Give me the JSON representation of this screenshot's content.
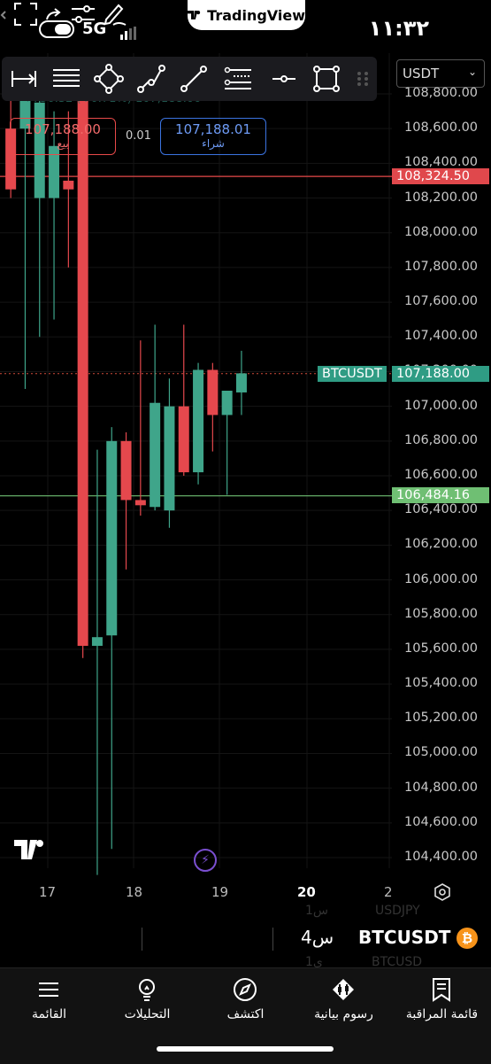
{
  "status_bar": {
    "network": "5G",
    "time": "١١:٣٢"
  },
  "badge": {
    "text": "TradingView"
  },
  "header": {
    "currency": "USDT"
  },
  "legend_hidden": "+756.32 (+0.71%) 107,188.00",
  "trade": {
    "sell_price": "107,188.00",
    "sell_label": "بيع",
    "spread": "0.01",
    "buy_price": "107,188.01",
    "buy_label": "شراء"
  },
  "price_tags": {
    "red_line": "108,324.50",
    "symbol_tag": "BTCUSDT",
    "last_price": "107,188.00",
    "green_line": "106,484.16"
  },
  "colors": {
    "up": "#3fa58a",
    "down": "#e5484d",
    "red_line": "#e84a4a",
    "green_line": "#6fbf73",
    "last_price_tag": "#2f9c84"
  },
  "chart_data": {
    "type": "candlestick",
    "symbol": "BTCUSDT",
    "y_ticks": [
      "108,800.00",
      "108,600.00",
      "108,400.00",
      "108,200.00",
      "108,000.00",
      "107,800.00",
      "107,600.00",
      "107,400.00",
      "107,200.00",
      "107,000.00",
      "106,800.00",
      "106,600.00",
      "106,400.00",
      "106,200.00",
      "106,000.00",
      "105,800.00",
      "105,600.00",
      "105,400.00",
      "105,200.00",
      "105,000.00",
      "104,800.00",
      "104,600.00",
      "104,400.00"
    ],
    "y_tick_values": [
      108800,
      108600,
      108400,
      108200,
      108000,
      107800,
      107600,
      107400,
      107200,
      107000,
      106800,
      106600,
      106400,
      106200,
      106000,
      105800,
      105600,
      105400,
      105200,
      105000,
      104800,
      104600,
      104400
    ],
    "x_ticks": [
      "17",
      "18",
      "19",
      "20",
      "2"
    ],
    "ylim": [
      104300,
      108900
    ],
    "horizontal_lines": [
      108324.5,
      106484.16,
      107188.0
    ],
    "candles": [
      {
        "o": 108600,
        "h": 108900,
        "l": 108200,
        "c": 108250
      },
      {
        "o": 108600,
        "h": 108900,
        "l": 107100,
        "c": 108800
      },
      {
        "o": 108200,
        "h": 108900,
        "l": 107400,
        "c": 108750
      },
      {
        "o": 108200,
        "h": 108700,
        "l": 107500,
        "c": 108500
      },
      {
        "o": 108300,
        "h": 108700,
        "l": 107800,
        "c": 108250
      },
      {
        "o": 108850,
        "h": 108900,
        "l": 105550,
        "c": 105620
      },
      {
        "o": 105620,
        "h": 106750,
        "l": 104300,
        "c": 105670
      },
      {
        "o": 105680,
        "h": 106880,
        "l": 104450,
        "c": 106800
      },
      {
        "o": 106800,
        "h": 106850,
        "l": 106060,
        "c": 106460
      },
      {
        "o": 106460,
        "h": 107380,
        "l": 106370,
        "c": 106430
      },
      {
        "o": 106420,
        "h": 107470,
        "l": 106400,
        "c": 107020
      },
      {
        "o": 106400,
        "h": 107160,
        "l": 106300,
        "c": 107000
      },
      {
        "o": 107000,
        "h": 107470,
        "l": 106600,
        "c": 106620
      },
      {
        "o": 106620,
        "h": 107250,
        "l": 106550,
        "c": 107210
      },
      {
        "o": 107210,
        "h": 107250,
        "l": 106740,
        "c": 106950
      },
      {
        "o": 106950,
        "h": 107080,
        "l": 106490,
        "c": 107090
      },
      {
        "o": 107080,
        "h": 107320,
        "l": 106950,
        "c": 107190
      }
    ]
  },
  "toolbar": {
    "tools": [
      "horizontal-ray-icon",
      "parallel-lines-icon",
      "shape-rotate-icon",
      "trend-path-icon",
      "trend-line-icon",
      "fib-levels-icon",
      "horizontal-line-icon",
      "rectangle-icon",
      "drag-handle-icon"
    ]
  },
  "symbol_row": {
    "symbol": "BTCUSDT",
    "interval": "4س",
    "ghost_top_left": "1س",
    "ghost_top_right": "USDJPY",
    "ghost_bottom_left": "1ي",
    "ghost_bottom_right": "BTCUSD"
  },
  "bottom_nav": [
    {
      "label": "القائمة",
      "icon": "menu-icon"
    },
    {
      "label": "التحليلات",
      "icon": "lightbulb-icon"
    },
    {
      "label": "اكتشف",
      "icon": "compass-icon"
    },
    {
      "label": "رسوم بيانية",
      "icon": "candles-icon"
    },
    {
      "label": "قائمة المراقبة",
      "icon": "bookmark-list-icon"
    }
  ]
}
